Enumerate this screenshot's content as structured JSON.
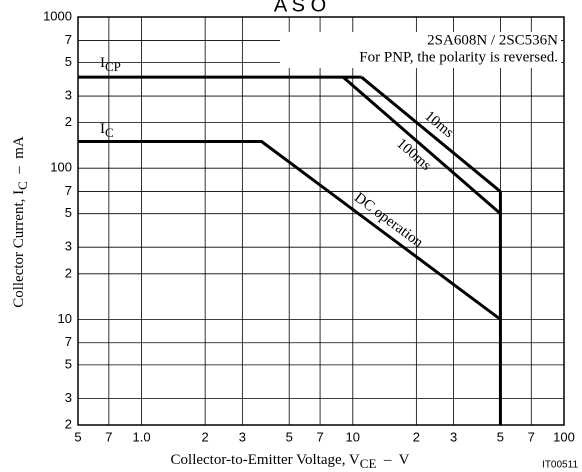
{
  "chart_data": {
    "type": "line",
    "title": "A S O",
    "notes": [
      "2SA608N / 2SC536N",
      "For PNP, the polarity is reversed."
    ],
    "code": "IT00511",
    "xlabel": {
      "text": "Collector-to-Emitter Voltage, V",
      "sub": "CE",
      "unit": "  –  V"
    },
    "ylabel": {
      "text": "Collector Current, I",
      "sub": "C",
      "unit": "  –  mA"
    },
    "log_x": true,
    "log_y": true,
    "grid": true,
    "xlim": [
      0.5,
      100
    ],
    "ylim": [
      2,
      1000
    ],
    "xticks": [
      {
        "value": 0.5,
        "label": "5"
      },
      {
        "value": 0.7,
        "label": "7"
      },
      {
        "value": 1,
        "label": "1.0"
      },
      2,
      3,
      5,
      7,
      10,
      {
        "value": 20,
        "label": "2"
      },
      {
        "value": 30,
        "label": "3"
      },
      {
        "value": 50,
        "label": "5"
      },
      {
        "value": 70,
        "label": "7"
      },
      100
    ],
    "yticks": [
      1000,
      {
        "value": 700,
        "label": "7"
      },
      {
        "value": 500,
        "label": "5"
      },
      {
        "value": 300,
        "label": "3"
      },
      {
        "value": 200,
        "label": "2"
      },
      100,
      {
        "value": 70,
        "label": "7"
      },
      {
        "value": 50,
        "label": "5"
      },
      {
        "value": 30,
        "label": "3"
      },
      {
        "value": 20,
        "label": "2"
      },
      10,
      7,
      5,
      3,
      2
    ],
    "curve_labels": [
      {
        "text": "I",
        "sub": "CP"
      },
      {
        "text": "I",
        "sub": "C"
      }
    ],
    "series": [
      {
        "name": "10ms",
        "color": "#000000",
        "x": [
          11,
          50
        ],
        "y": [
          400,
          70
        ]
      },
      {
        "name": "100ms",
        "color": "#000000",
        "x": [
          9,
          50
        ],
        "y": [
          400,
          50
        ]
      },
      {
        "name": "DC operation",
        "color": "#000000",
        "x": [
          0.5,
          3.7,
          50,
          50
        ],
        "y": [
          150,
          150,
          10,
          2
        ]
      },
      {
        "color": "#000000",
        "x": [
          0.5,
          11
        ],
        "y": [
          400,
          400
        ]
      },
      {
        "color": "#000000",
        "x": [
          50,
          50
        ],
        "y": [
          70,
          10
        ]
      }
    ]
  }
}
